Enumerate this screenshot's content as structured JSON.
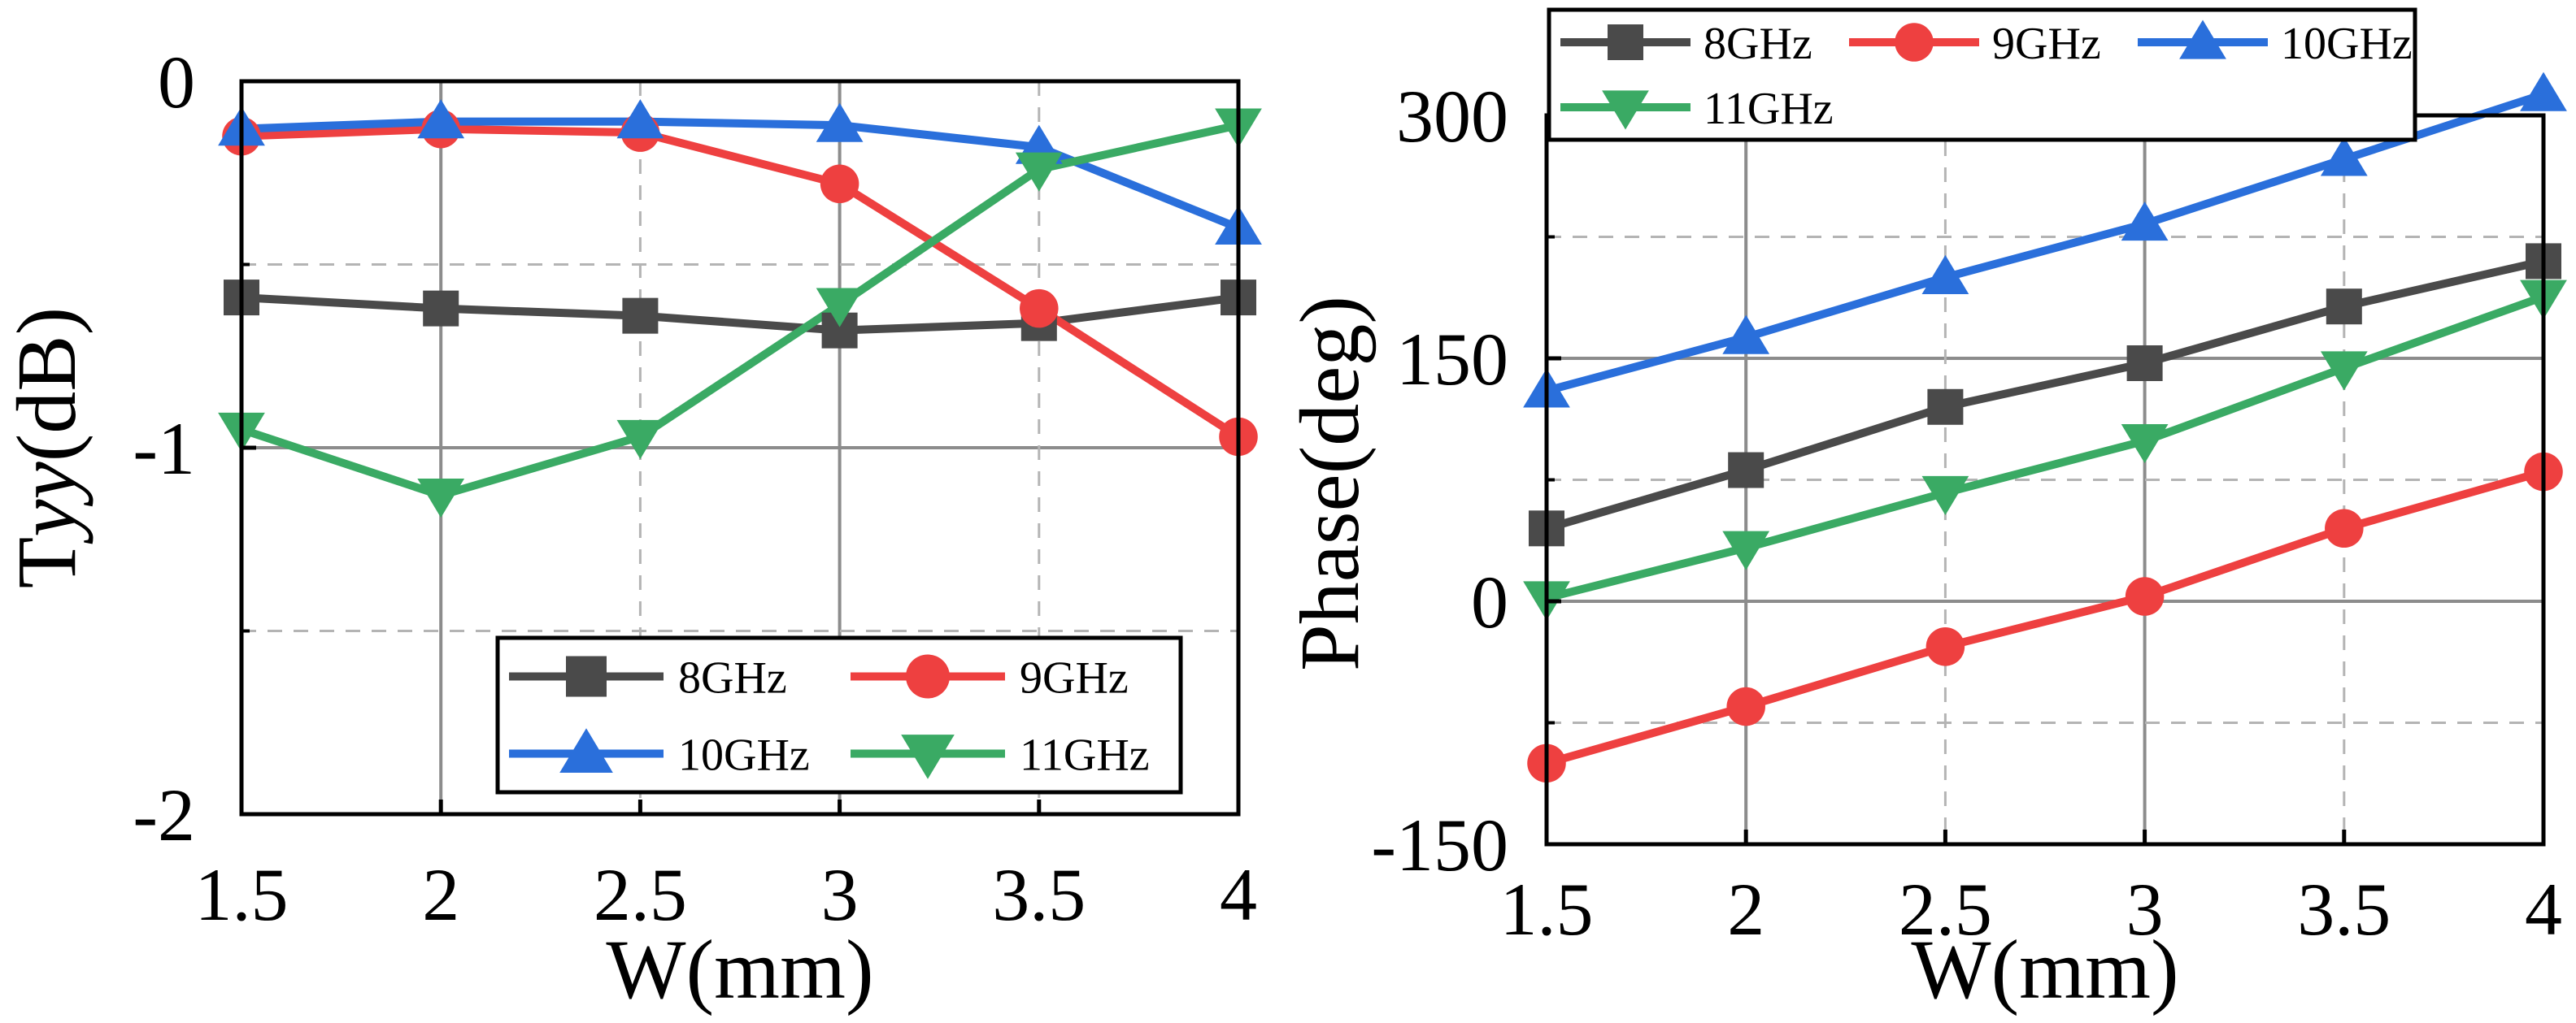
{
  "chart_data": [
    {
      "type": "line",
      "title": "",
      "xlabel": "W(mm)",
      "ylabel_prefix": "T",
      "ylabel_italic": "yy",
      "ylabel_suffix": "(dB)",
      "x": [
        1.5,
        2,
        2.5,
        3,
        3.5,
        4
      ],
      "xlim": [
        1.5,
        4
      ],
      "ylim": [
        -2,
        0
      ],
      "xticks": [
        "1.5",
        "2",
        "2.5",
        "3",
        "3.5",
        "4"
      ],
      "yticks": [
        "0",
        "-1",
        "-2"
      ],
      "grid": true,
      "legend_position": "bottom-right",
      "series": [
        {
          "name": "8GHz",
          "color": "#4a4a4a",
          "marker": "square",
          "values": [
            -0.59,
            -0.62,
            -0.64,
            -0.68,
            -0.66,
            -0.59
          ]
        },
        {
          "name": "9GHz",
          "color": "#ee4040",
          "marker": "circle",
          "values": [
            -0.15,
            -0.13,
            -0.14,
            -0.28,
            -0.62,
            -0.97
          ]
        },
        {
          "name": "10GHz",
          "color": "#2a6fdb",
          "marker": "triangle-up",
          "values": [
            -0.13,
            -0.11,
            -0.11,
            -0.12,
            -0.18,
            -0.4
          ]
        },
        {
          "name": "11GHz",
          "color": "#3aaa64",
          "marker": "triangle-down",
          "values": [
            -0.95,
            -1.13,
            -0.97,
            -0.61,
            -0.24,
            -0.12
          ]
        }
      ]
    },
    {
      "type": "line",
      "title": "",
      "xlabel": "W(mm)",
      "ylabel": "Phase(deg)",
      "x": [
        1.5,
        2,
        2.5,
        3,
        3.5,
        4
      ],
      "xlim": [
        1.5,
        4
      ],
      "ylim": [
        -150,
        300
      ],
      "xticks": [
        "1.5",
        "2",
        "2.5",
        "3",
        "3.5",
        "4"
      ],
      "yticks": [
        "300",
        "150",
        "0",
        "-150"
      ],
      "grid": true,
      "legend_position": "top-left",
      "series": [
        {
          "name": "8GHz",
          "color": "#4a4a4a",
          "marker": "square",
          "values": [
            45,
            81,
            120,
            147,
            182,
            210
          ]
        },
        {
          "name": "9GHz",
          "color": "#ee4040",
          "marker": "circle",
          "values": [
            -100,
            -65,
            -28,
            3,
            45,
            80
          ]
        },
        {
          "name": "10GHz",
          "color": "#2a6fdb",
          "marker": "triangle-up",
          "values": [
            130,
            163,
            200,
            233,
            273,
            313
          ]
        },
        {
          "name": "11GHz",
          "color": "#3aaa64",
          "marker": "triangle-down",
          "values": [
            2,
            33,
            67,
            99,
            144,
            188
          ]
        }
      ]
    }
  ]
}
